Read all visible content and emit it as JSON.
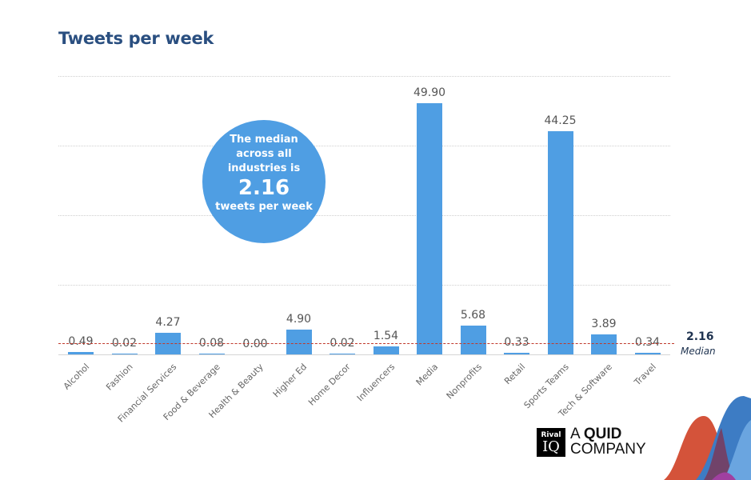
{
  "title": "Tweets per week",
  "bubble": {
    "line1": "The median",
    "line2": "across all",
    "line3": "industries is",
    "value": "2.16",
    "line4": "tweets per week"
  },
  "median": {
    "value": "2.16",
    "label": "Median"
  },
  "logo": {
    "box_top": "Rival",
    "box_bottom": "IQ",
    "text_line1_a": "A ",
    "text_line1_b": "QUID",
    "text_line2": "COMPANY"
  },
  "colors": {
    "bar": "#4f9ee3",
    "title": "#2a4f80",
    "median_line": "#c0392b"
  },
  "chart_data": {
    "type": "bar",
    "title": "Tweets per week",
    "categories": [
      "Alcohol",
      "Fashion",
      "Financial Services",
      "Food & Beverage",
      "Health & Beauty",
      "Higher Ed",
      "Home Decor",
      "Influencers",
      "Media",
      "Nonprofits",
      "Retail",
      "Sports Teams",
      "Tech & Software",
      "Travel"
    ],
    "values": [
      0.49,
      0.02,
      4.27,
      0.08,
      0.0,
      4.9,
      0.02,
      1.54,
      49.9,
      5.68,
      0.33,
      44.25,
      3.89,
      0.34
    ],
    "labels": [
      "0.49",
      "0.02",
      "4.27",
      "0.08",
      "0.00",
      "4.90",
      "0.02",
      "1.54",
      "49.90",
      "5.68",
      "0.33",
      "44.25",
      "3.89",
      "0.34"
    ],
    "xlabel": "",
    "ylabel": "",
    "ylim": [
      0,
      55
    ],
    "grid": true,
    "annotations": [
      {
        "type": "hline",
        "y": 2.16,
        "label": "2.16 Median"
      }
    ]
  }
}
